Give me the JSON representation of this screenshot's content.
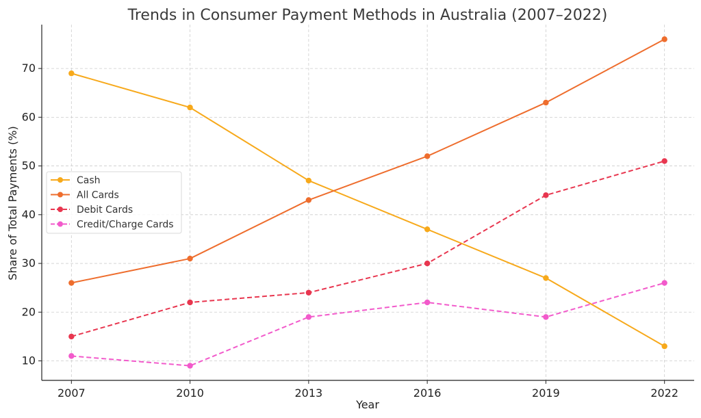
{
  "chart_data": {
    "type": "line",
    "title": "Trends in Consumer Payment Methods in Australia (2007–2022)",
    "xlabel": "Year",
    "ylabel": "Share of Total Payments (%)",
    "x": [
      2007,
      2010,
      2013,
      2016,
      2019,
      2022
    ],
    "x_tick_labels": [
      "2007",
      "2010",
      "2013",
      "2016",
      "2019",
      "2022"
    ],
    "y_ticks": [
      10,
      20,
      30,
      40,
      50,
      60,
      70
    ],
    "y_tick_labels": [
      "10",
      "20",
      "30",
      "40",
      "50",
      "60",
      "70"
    ],
    "ylim": [
      6,
      79
    ],
    "grid": true,
    "legend_position": "center-left",
    "series": [
      {
        "name": "Cash",
        "values": [
          69,
          62,
          47,
          37,
          27,
          13
        ],
        "color": "#F7A91B",
        "line_style": "solid"
      },
      {
        "name": "All Cards",
        "values": [
          26,
          31,
          43,
          52,
          63,
          76
        ],
        "color": "#EE6D2D",
        "line_style": "solid"
      },
      {
        "name": "Debit Cards",
        "values": [
          15,
          22,
          24,
          30,
          44,
          51
        ],
        "color": "#E8364F",
        "line_style": "dashed"
      },
      {
        "name": "Credit/Charge Cards",
        "values": [
          11,
          9,
          19,
          22,
          19,
          26
        ],
        "color": "#F25ACB",
        "line_style": "dashed"
      }
    ]
  }
}
